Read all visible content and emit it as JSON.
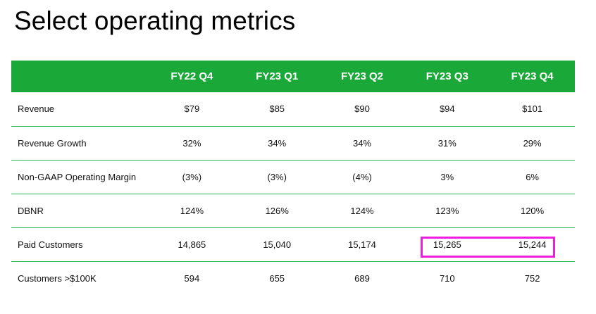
{
  "title": "Select operating metrics",
  "table": {
    "columns": [
      "FY22 Q4",
      "FY23 Q1",
      "FY23 Q2",
      "FY23 Q3",
      "FY23 Q4"
    ],
    "rows": [
      {
        "label": "Revenue",
        "values": [
          "$79",
          "$85",
          "$90",
          "$94",
          "$101"
        ]
      },
      {
        "label": "Revenue Growth",
        "values": [
          "32%",
          "34%",
          "34%",
          "31%",
          "29%"
        ]
      },
      {
        "label": "Non-GAAP Operating Margin",
        "values": [
          "(3%)",
          "(3%)",
          "(4%)",
          "3%",
          "6%"
        ]
      },
      {
        "label": "DBNR",
        "values": [
          "124%",
          "126%",
          "124%",
          "123%",
          "120%"
        ]
      },
      {
        "label": "Paid Customers",
        "values": [
          "14,865",
          "15,040",
          "15,174",
          "15,265",
          "15,244"
        ]
      },
      {
        "label": "Customers >$100K",
        "values": [
          "594",
          "655",
          "689",
          "710",
          "752"
        ]
      }
    ]
  },
  "colors": {
    "header_bg": "#1aa938",
    "row_divider": "#2db45c",
    "highlight": "#ee1fdc"
  }
}
